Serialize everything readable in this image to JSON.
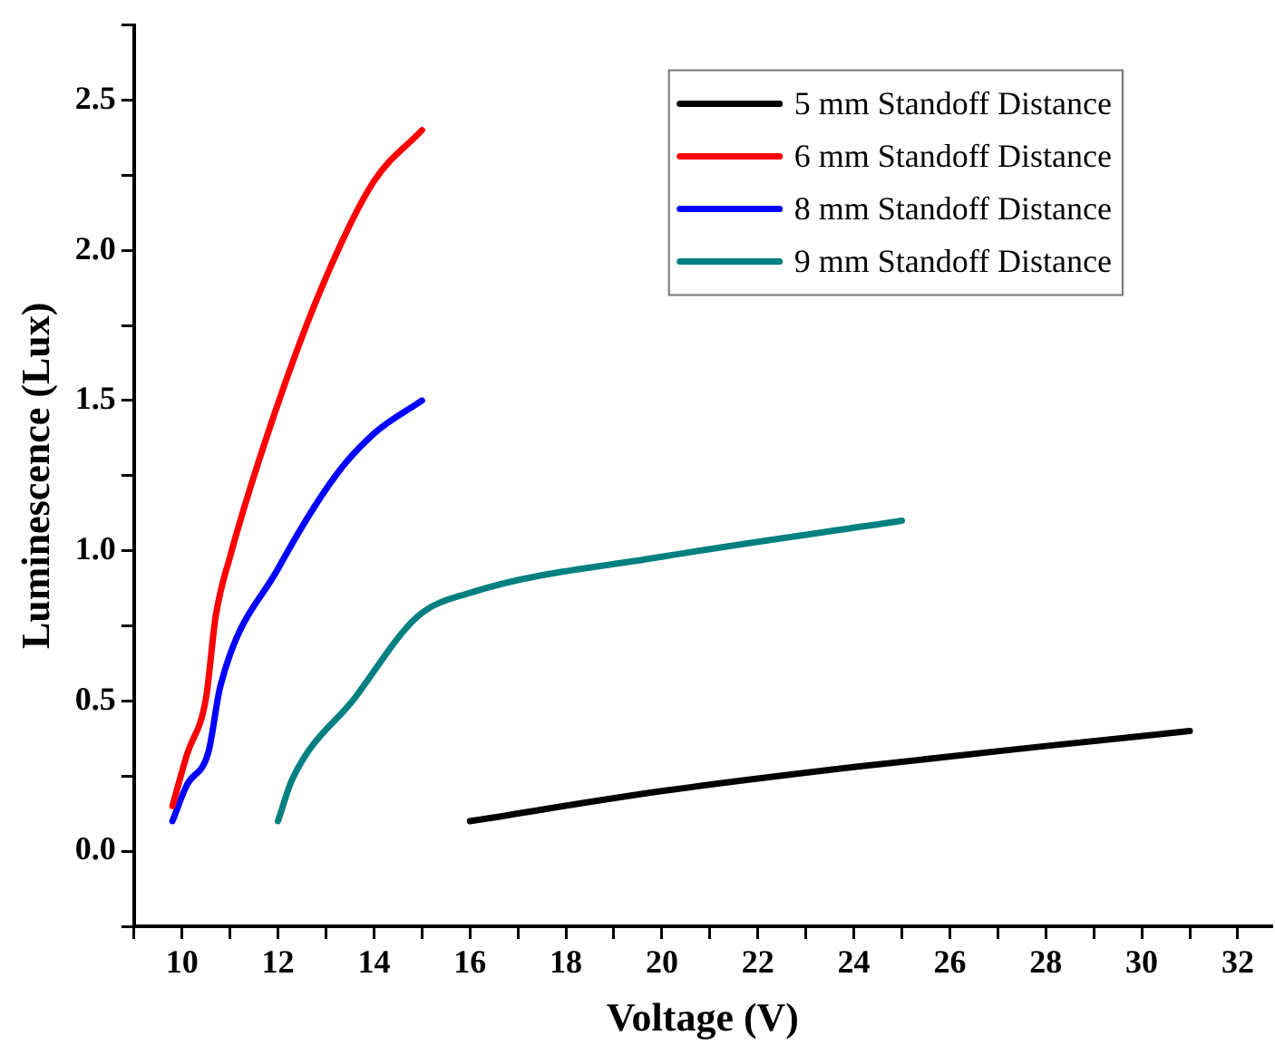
{
  "chart_data": {
    "type": "line",
    "xlabel": "Voltage (V)",
    "ylabel": "Luminescence (Lux)",
    "xlim": [
      9,
      32.7
    ],
    "ylim": [
      -0.25,
      2.75
    ],
    "xticks": [
      {
        "value": 9,
        "label": null
      },
      10,
      {
        "value": 11,
        "label": null
      },
      12,
      {
        "value": 13,
        "label": null
      },
      14,
      {
        "value": 15,
        "label": null
      },
      16,
      {
        "value": 17,
        "label": null
      },
      18,
      {
        "value": 19,
        "label": null
      },
      20,
      {
        "value": 21,
        "label": null
      },
      22,
      {
        "value": 23,
        "label": null
      },
      24,
      {
        "value": 25,
        "label": null
      },
      26,
      {
        "value": 27,
        "label": null
      },
      28,
      {
        "value": 29,
        "label": null
      },
      30,
      {
        "value": 31,
        "label": null
      },
      32
    ],
    "yticks": [
      {
        "value": -0.25,
        "label": null
      },
      {
        "value": 0,
        "label": "0.0"
      },
      {
        "value": 0.25,
        "label": null
      },
      0.5,
      {
        "value": 0.75,
        "label": null
      },
      {
        "value": 1,
        "label": "1.0"
      },
      {
        "value": 1.25,
        "label": null
      },
      1.5,
      {
        "value": 1.75,
        "label": null
      },
      {
        "value": 2,
        "label": "2.0"
      },
      {
        "value": 2.25,
        "label": null
      },
      2.5,
      {
        "value": 2.75,
        "label": null
      }
    ],
    "grid": false,
    "legend": "top right",
    "marker": "none",
    "line_style": "solid",
    "series": [
      {
        "name": "5 mm Standoff Distance",
        "color": "#000000",
        "x": [
          16,
          20,
          24,
          28,
          31
        ],
        "values": [
          0.1,
          0.2,
          0.28,
          0.35,
          0.4
        ]
      },
      {
        "name": "6 mm Standoff Distance",
        "color": "#ff0000",
        "x": [
          9.8,
          10.1,
          10.5,
          10.7,
          11,
          12,
          13,
          14,
          15
        ],
        "values": [
          0.15,
          0.32,
          0.51,
          0.78,
          0.98,
          1.49,
          1.91,
          2.23,
          2.4
        ]
      },
      {
        "name": "8 mm Standoff Distance",
        "color": "#0000ff",
        "x": [
          9.8,
          10.1,
          10.55,
          10.8,
          12,
          13.2,
          14,
          15
        ],
        "values": [
          0.1,
          0.22,
          0.33,
          0.55,
          0.94,
          1.25,
          1.39,
          1.5
        ]
      },
      {
        "name": "9 mm Standoff Distance",
        "color": "#008080",
        "x": [
          12,
          12.3,
          13.6,
          14.9,
          16,
          20,
          25
        ],
        "values": [
          0.1,
          0.24,
          0.51,
          0.78,
          0.86,
          0.98,
          1.1
        ]
      }
    ]
  }
}
